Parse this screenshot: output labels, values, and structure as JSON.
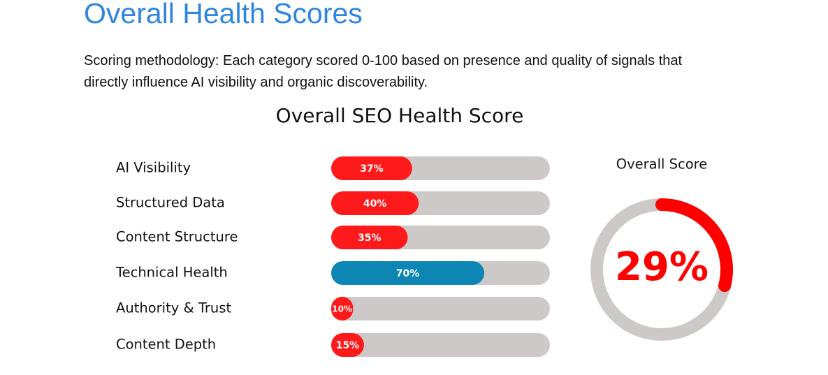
{
  "title": "Overall Health Scores",
  "description": "Scoring methodology: Each category scored 0-100 based on presence and quality of signals that directly influence AI visibility and organic discoverability.",
  "chart_data": {
    "type": "bar",
    "orientation": "horizontal",
    "title": "Overall SEO Health Score",
    "categories": [
      "AI Visibility",
      "Structured Data",
      "Content Structure",
      "Technical Health",
      "Authority & Trust",
      "Content Depth"
    ],
    "values": [
      37,
      40,
      35,
      70,
      10,
      15
    ],
    "value_labels": [
      "37%",
      "40%",
      "35%",
      "70%",
      "10%",
      "15%"
    ],
    "colors": [
      "#fe1a1a",
      "#fe1a1a",
      "#fe1a1a",
      "#0e86b4",
      "#fe1a1a",
      "#fe1a1a"
    ],
    "track_color": "#cdc9c9",
    "xlim": [
      0,
      100
    ],
    "gauge": {
      "title": "Overall Score",
      "value": 29,
      "value_label": "29%",
      "color": "#fe0000",
      "track_color": "#cdc9c9",
      "lim": [
        0,
        100
      ]
    }
  }
}
